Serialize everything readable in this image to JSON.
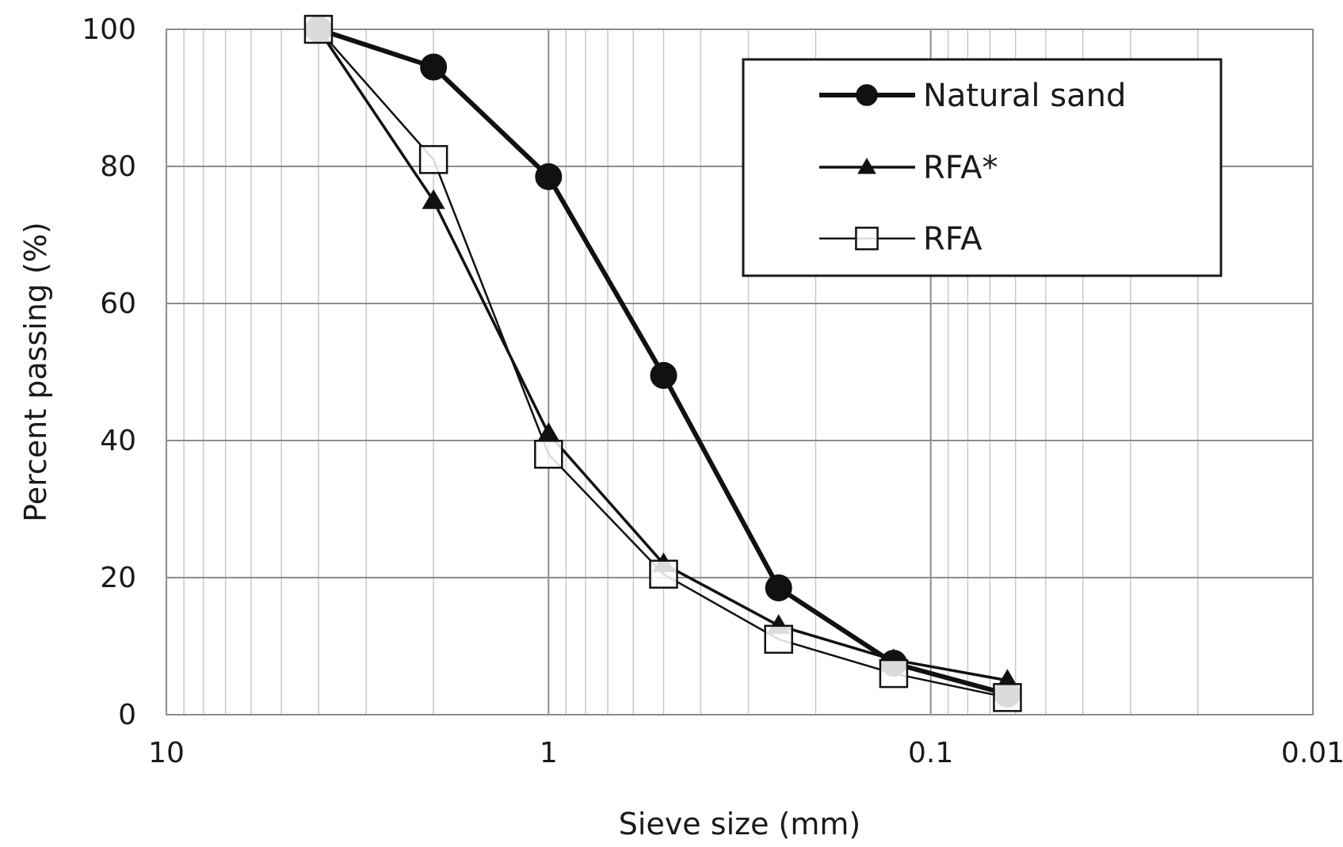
{
  "chart_data": {
    "type": "line",
    "xlabel": "Sieve size (mm)",
    "ylabel": "Percent passing (%)",
    "x_scale": "log",
    "x_reversed": true,
    "xlim": [
      10,
      0.01
    ],
    "ylim": [
      0,
      100
    ],
    "x_ticks": [
      10,
      1,
      0.1,
      0.01
    ],
    "x_tick_labels": [
      "10",
      "1",
      "0.1",
      "0.01"
    ],
    "y_ticks": [
      0,
      20,
      40,
      60,
      80,
      100
    ],
    "y_tick_labels": [
      "0",
      "20",
      "40",
      "60",
      "80",
      "100"
    ],
    "grid": true,
    "legend_position": "top-right",
    "x": [
      4,
      2,
      1,
      0.5,
      0.25,
      0.125,
      0.063
    ],
    "series": [
      {
        "name": "Natural sand",
        "marker": "filled-circle",
        "values": [
          100,
          94.5,
          78.5,
          49.5,
          18.5,
          7.5,
          3
        ]
      },
      {
        "name": "RFA*",
        "marker": "filled-triangle",
        "values": [
          100,
          75,
          41,
          22,
          13,
          8,
          5
        ]
      },
      {
        "name": "RFA",
        "marker": "open-square",
        "values": [
          100,
          81,
          38,
          20.5,
          11,
          6,
          2.5
        ]
      }
    ]
  }
}
